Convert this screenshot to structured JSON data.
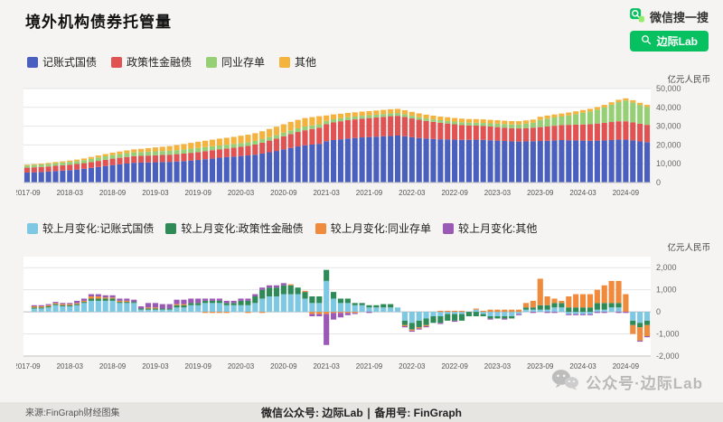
{
  "page": {
    "title": "境外机构债券托管量",
    "wechat_search_label": "微信搜一搜",
    "wechat_button_label": "边际Lab",
    "watermark": "公众号·边际Lab",
    "source": "来源:FinGraph财经图集",
    "footer": "微信公众号: 边际Lab ∣ 备用号: FinGraph"
  },
  "colors": {
    "accent_green": "#07c160",
    "grid": "#e5e5e5",
    "watermark_gray": "#b9b9b9",
    "page_bg": "#f5f4f2"
  },
  "chart_data": [
    {
      "type": "bar",
      "stacked": true,
      "title": "境外机构债券托管量",
      "ylabel": "亿元人民币",
      "ylim": [
        0,
        50000
      ],
      "yticks": [
        "0",
        "10,000",
        "20,000",
        "30,000",
        "40,000",
        "50,000"
      ],
      "grid": true,
      "legend_position": "top",
      "xtick_every": 6,
      "months": [
        "2017-09",
        "2017-10",
        "2017-11",
        "2017-12",
        "2018-01",
        "2018-02",
        "2018-03",
        "2018-04",
        "2018-05",
        "2018-06",
        "2018-07",
        "2018-08",
        "2018-09",
        "2018-10",
        "2018-11",
        "2018-12",
        "2019-01",
        "2019-02",
        "2019-03",
        "2019-04",
        "2019-05",
        "2019-06",
        "2019-07",
        "2019-08",
        "2019-09",
        "2019-10",
        "2019-11",
        "2019-12",
        "2020-01",
        "2020-02",
        "2020-03",
        "2020-04",
        "2020-05",
        "2020-06",
        "2020-07",
        "2020-08",
        "2020-09",
        "2020-10",
        "2020-11",
        "2020-12",
        "2021-01",
        "2021-02",
        "2021-03",
        "2021-04",
        "2021-05",
        "2021-06",
        "2021-07",
        "2021-08",
        "2021-09",
        "2021-10",
        "2021-11",
        "2021-12",
        "2022-01",
        "2022-02",
        "2022-03",
        "2022-04",
        "2022-05",
        "2022-06",
        "2022-07",
        "2022-08",
        "2022-09",
        "2022-10",
        "2022-11",
        "2022-12",
        "2023-01",
        "2023-02",
        "2023-03",
        "2023-04",
        "2023-05",
        "2023-06",
        "2023-07",
        "2023-08",
        "2023-09",
        "2023-10",
        "2023-11",
        "2023-12",
        "2024-01",
        "2024-02",
        "2024-03",
        "2024-04",
        "2024-05",
        "2024-06",
        "2024-07",
        "2024-08",
        "2024-09",
        "2024-10",
        "2024-11",
        "2024-12"
      ],
      "series": [
        {
          "name": "记账式国债",
          "color": "#4a5fbe",
          "values": [
            5300,
            5450,
            5600,
            5800,
            6100,
            6350,
            6600,
            6900,
            7300,
            7800,
            8300,
            8800,
            9300,
            9700,
            10100,
            10500,
            10600,
            10700,
            10800,
            10900,
            11000,
            11200,
            11400,
            11700,
            12000,
            12400,
            12800,
            13200,
            13500,
            13800,
            14100,
            14400,
            14800,
            15400,
            16100,
            16800,
            17600,
            18400,
            19200,
            19800,
            20200,
            20600,
            22000,
            22600,
            23000,
            23400,
            23700,
            24000,
            24200,
            24400,
            24600,
            24800,
            25000,
            24600,
            24100,
            23700,
            23400,
            23200,
            23000,
            22900,
            22800,
            22700,
            22700,
            22800,
            22700,
            22500,
            22300,
            22100,
            21900,
            21800,
            21900,
            22000,
            22100,
            22200,
            22400,
            22600,
            22500,
            22400,
            22300,
            22200,
            22300,
            22400,
            22600,
            22800,
            22800,
            22400,
            21900,
            21500
          ]
        },
        {
          "name": "政策性金融债",
          "color": "#e15353",
          "values": [
            2600,
            2650,
            2700,
            2750,
            2800,
            2850,
            2900,
            2950,
            3000,
            3100,
            3200,
            3300,
            3400,
            3450,
            3500,
            3550,
            3600,
            3650,
            3700,
            3750,
            3800,
            3900,
            4000,
            4100,
            4200,
            4300,
            4400,
            4500,
            4600,
            4700,
            4900,
            5100,
            5400,
            5800,
            6200,
            6600,
            7000,
            7400,
            7700,
            8000,
            8300,
            8600,
            9100,
            9400,
            9600,
            9800,
            9900,
            10000,
            10100,
            10200,
            10350,
            10500,
            10500,
            10300,
            10000,
            9700,
            9400,
            9100,
            8800,
            8500,
            8200,
            7900,
            7700,
            7500,
            7400,
            7300,
            7200,
            7100,
            7000,
            7000,
            7100,
            7200,
            7400,
            7600,
            7800,
            8000,
            8200,
            8400,
            8600,
            8800,
            9100,
            9400,
            9600,
            9800,
            9800,
            9600,
            9400,
            9200
          ]
        },
        {
          "name": "同业存单",
          "color": "#97cf76",
          "values": [
            1200,
            1250,
            1300,
            1350,
            1400,
            1450,
            1500,
            1550,
            1600,
            1700,
            1800,
            1850,
            1900,
            1950,
            2000,
            2000,
            2000,
            2050,
            2100,
            2100,
            2100,
            2150,
            2200,
            2200,
            2200,
            2150,
            2100,
            2050,
            2000,
            2000,
            2000,
            1950,
            1950,
            1900,
            1900,
            1900,
            1900,
            1950,
            1950,
            2000,
            1900,
            1800,
            1700,
            1650,
            1600,
            1550,
            1500,
            1500,
            1500,
            1500,
            1500,
            1500,
            1500,
            1450,
            1400,
            1350,
            1300,
            1300,
            1350,
            1400,
            1450,
            1500,
            1500,
            1550,
            1600,
            1700,
            1800,
            1900,
            2000,
            2100,
            2300,
            2600,
            3800,
            4200,
            4400,
            4500,
            5000,
            5600,
            6200,
            6800,
            7400,
            8200,
            9200,
            10200,
            11000,
            10600,
            10000,
            9500
          ]
        },
        {
          "name": "其他",
          "color": "#f3b33e",
          "values": [
            400,
            450,
            500,
            550,
            600,
            650,
            700,
            800,
            900,
            1000,
            1100,
            1200,
            1300,
            1400,
            1500,
            1600,
            1700,
            1900,
            2100,
            2300,
            2500,
            2700,
            2900,
            3100,
            3300,
            3400,
            3500,
            3600,
            3700,
            3800,
            3900,
            4000,
            4100,
            4200,
            4300,
            4400,
            4500,
            4500,
            4500,
            4500,
            4400,
            4300,
            2900,
            2600,
            2400,
            2300,
            2250,
            2250,
            2200,
            2200,
            2200,
            2200,
            2200,
            2150,
            2100,
            2050,
            2000,
            2000,
            1950,
            1950,
            1900,
            1900,
            1900,
            1900,
            1900,
            1850,
            1850,
            1800,
            1800,
            1750,
            1750,
            1700,
            1700,
            1650,
            1600,
            1600,
            1550,
            1500,
            1450,
            1400,
            1350,
            1300,
            1300,
            1250,
            1200,
            1200,
            1150,
            1100
          ]
        }
      ]
    },
    {
      "type": "bar",
      "stacked": true,
      "diverging": true,
      "title": "较上月变化",
      "ylabel": "亿元人民币",
      "ylim": [
        -2000,
        2500
      ],
      "yticks": [
        "2,000",
        "1,000",
        "0",
        "-1,000",
        "-2,000"
      ],
      "grid": true,
      "legend_position": "top",
      "xtick_every": 6,
      "derivation": "values are the month-over-month difference of the corresponding series in chart 0",
      "series": [
        {
          "name": "较上月变化:记账式国债",
          "color": "#7ec8e3",
          "values_derived_from": "chart_data.0.series.0"
        },
        {
          "name": "较上月变化:政策性金融债",
          "color": "#2e8b57",
          "values_derived_from": "chart_data.0.series.1"
        },
        {
          "name": "较上月变化:同业存单",
          "color": "#f08a3c",
          "values_derived_from": "chart_data.0.series.2"
        },
        {
          "name": "较上月变化:其他",
          "color": "#9b59b6",
          "values_derived_from": "chart_data.0.series.3"
        }
      ]
    }
  ]
}
